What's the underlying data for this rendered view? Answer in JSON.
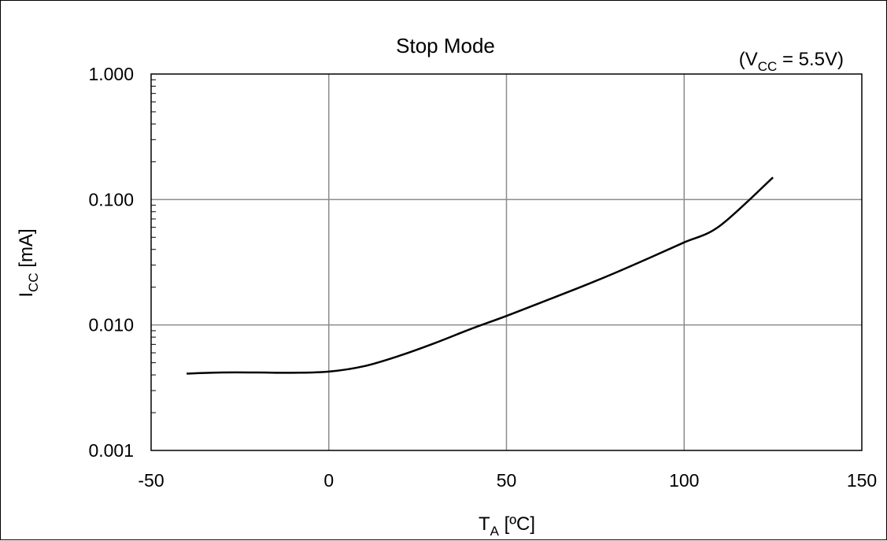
{
  "chart_data": {
    "type": "line",
    "title": "Stop Mode",
    "annotation": {
      "open": "(V",
      "sub": "CC",
      "rest": " = 5.5V)"
    },
    "xlabel": {
      "main": "T",
      "sub": "A",
      "rest": " [ºC]"
    },
    "ylabel": {
      "main": "I",
      "sub": "CC",
      "rest": " [mA]"
    },
    "x_axis": {
      "min": -50,
      "max": 150,
      "ticks": [
        -50,
        0,
        50,
        100,
        150
      ],
      "tick_labels": [
        "-50",
        "0",
        "50",
        "100",
        "150"
      ]
    },
    "y_axis": {
      "scale": "log",
      "min": 0.001,
      "max": 1,
      "ticks": [
        0.001,
        0.01,
        0.1,
        1
      ],
      "tick_labels": [
        "0.001",
        "0.010",
        "0.100",
        "1.000"
      ]
    },
    "grid": true,
    "legend": "none",
    "series": [
      {
        "color": "#000000",
        "x": [
          -40,
          -30,
          -20,
          -10,
          0,
          10,
          20,
          30,
          40,
          50,
          60,
          70,
          80,
          90,
          100,
          110,
          125
        ],
        "y": [
          0.0041,
          0.00418,
          0.00418,
          0.00416,
          0.00425,
          0.0047,
          0.0057,
          0.0072,
          0.0093,
          0.0118,
          0.0152,
          0.0196,
          0.0256,
          0.034,
          0.0455,
          0.0615,
          0.15
        ]
      }
    ]
  }
}
